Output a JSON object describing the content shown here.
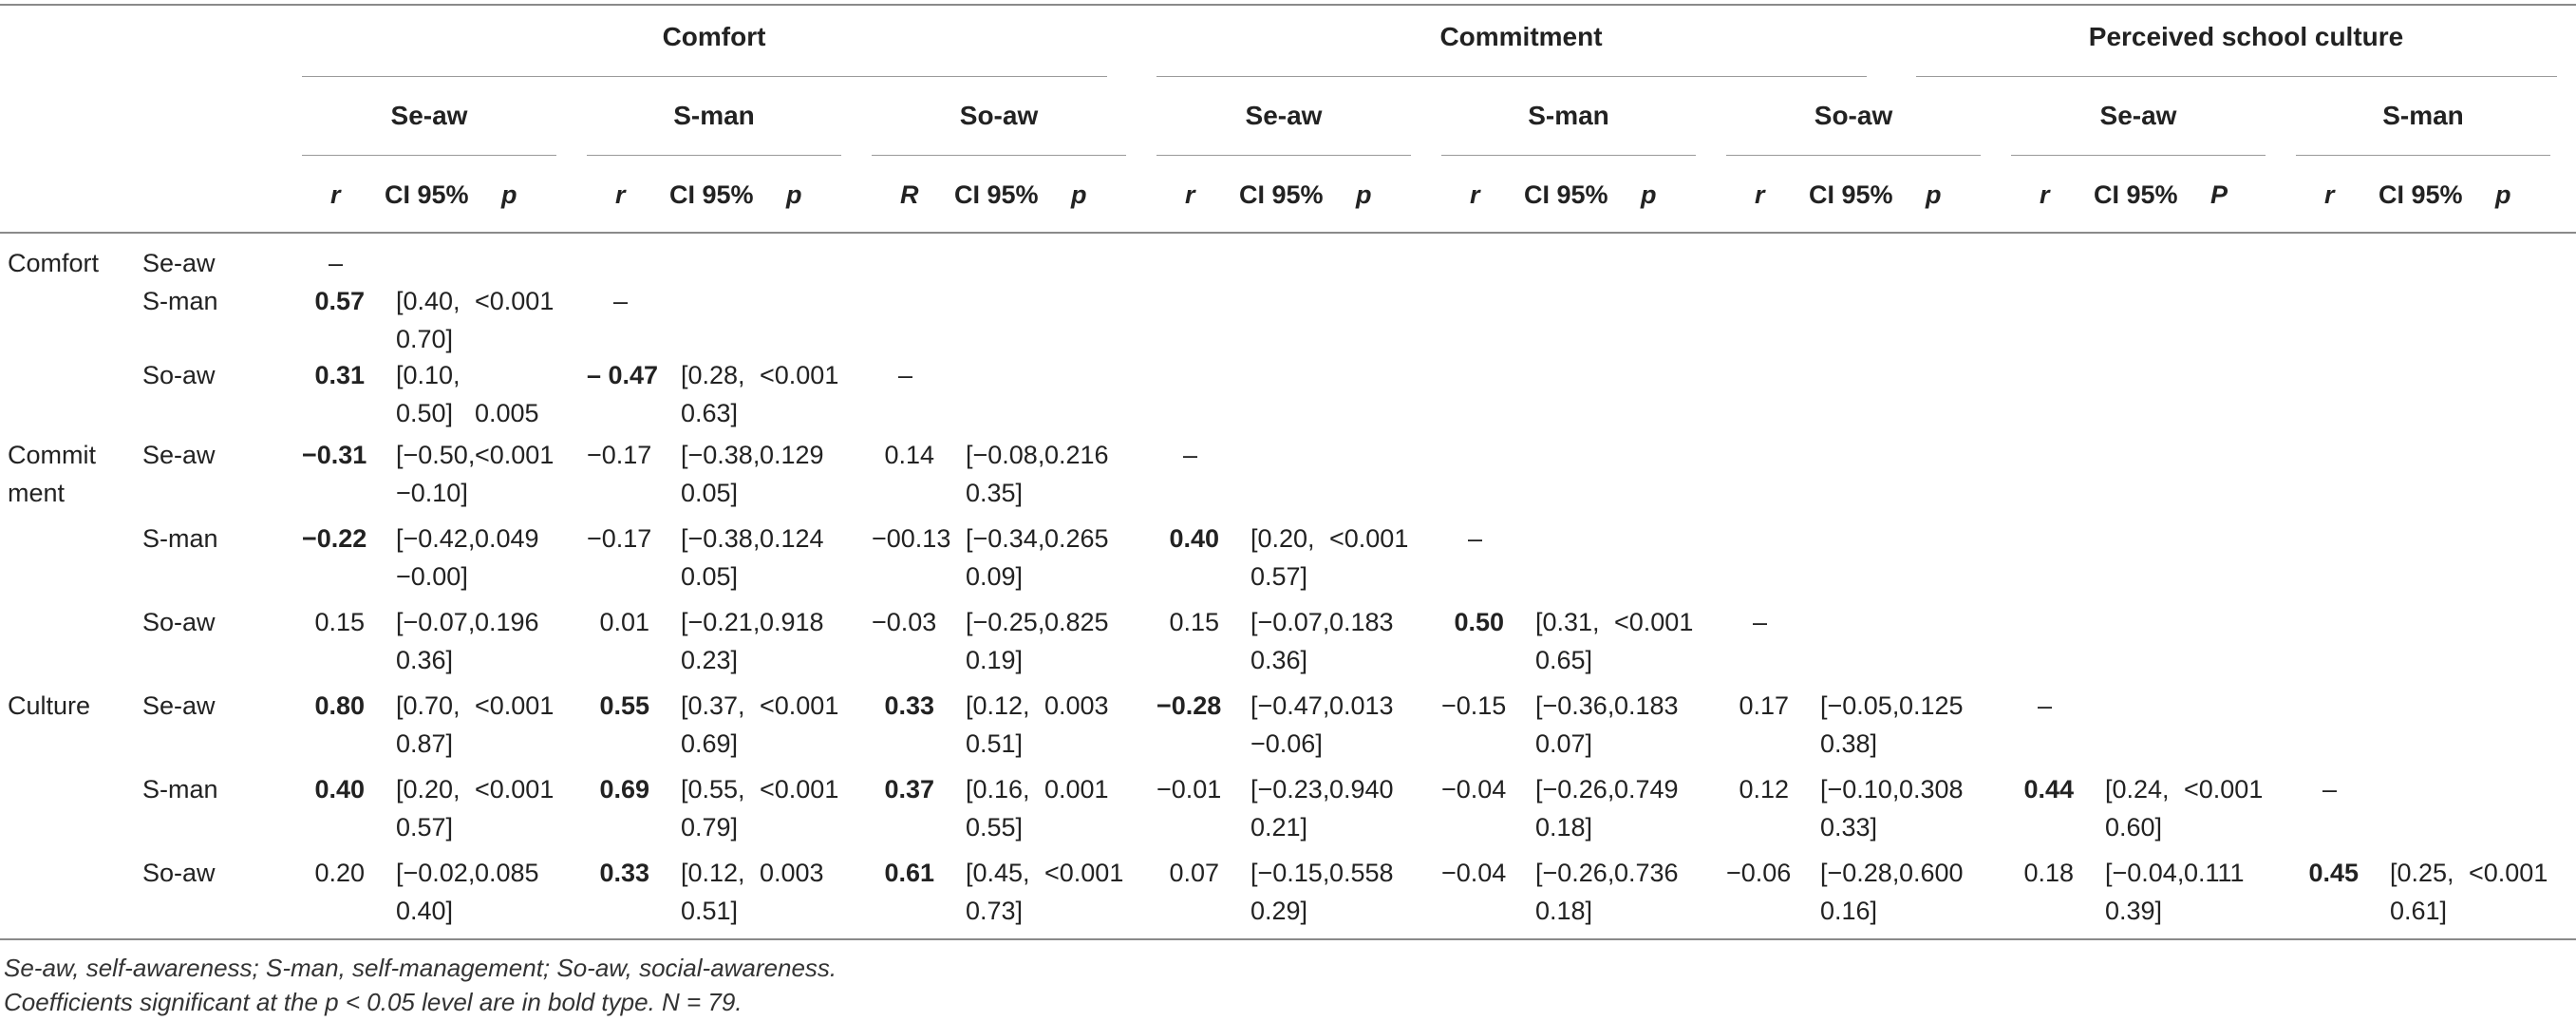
{
  "header": {
    "groups": [
      "Comfort",
      "Commitment",
      "Perceived school culture"
    ],
    "subgroups": [
      "Se-aw",
      "S-man",
      "So-aw",
      "Se-aw",
      "S-man",
      "So-aw",
      "Se-aw",
      "S-man"
    ],
    "stat_cols": [
      [
        "r",
        "CI 95%",
        "p"
      ],
      [
        "r",
        "CI 95%",
        "p"
      ],
      [
        "R",
        "CI 95%",
        "p"
      ],
      [
        "r",
        "CI 95%",
        "p"
      ],
      [
        "r",
        "CI 95%",
        "p"
      ],
      [
        "r",
        "CI 95%",
        "p"
      ],
      [
        "r",
        "CI 95%",
        "P"
      ],
      [
        "r",
        "CI 95%",
        "p"
      ]
    ]
  },
  "row_groups": [
    {
      "label": [
        "Comfort"
      ],
      "rows": [
        "Se-aw",
        "S-man",
        "So-aw"
      ]
    },
    {
      "label": [
        "Commit",
        "ment"
      ],
      "rows": [
        "Se-aw",
        "S-man",
        "So-aw"
      ]
    },
    {
      "label": [
        "Culture"
      ],
      "rows": [
        "Se-aw",
        "S-man",
        "So-aw"
      ]
    }
  ],
  "dash": "–",
  "rows": [
    {
      "cells": [
        [
          "–"
        ]
      ]
    },
    {
      "cells": [
        [
          "0.57",
          "[0.40,",
          "0.70]",
          "<0.001"
        ],
        [
          "–"
        ]
      ]
    },
    {
      "cells": [
        [
          "0.31",
          "[0.10,",
          "0.50]",
          "0.005"
        ],
        [
          "– 0.47",
          "[0.28,",
          "0.63]",
          "<0.001"
        ],
        [
          "–"
        ]
      ]
    },
    {
      "cells": [
        [
          "−0.31",
          "[−0.50,",
          "−0.10]",
          "<0.001"
        ],
        [
          "−0.17",
          "[−0.38,",
          "0.05]",
          "0.129"
        ],
        [
          "0.14",
          "[−0.08,",
          "0.35]",
          "0.216"
        ],
        [
          "–"
        ]
      ]
    },
    {
      "cells": [
        [
          "−0.22",
          "[−0.42,",
          "−0.00]",
          "0.049"
        ],
        [
          "−0.17",
          "[−0.38,",
          "0.05]",
          "0.124"
        ],
        [
          "−00.13",
          "[−0.34,",
          "0.09]",
          "0.265"
        ],
        [
          "0.40",
          "[0.20,",
          "0.57]",
          "<0.001"
        ],
        [
          "–"
        ]
      ]
    },
    {
      "cells": [
        [
          "0.15",
          "[−0.07,",
          "0.36]",
          "0.196"
        ],
        [
          "0.01",
          "[−0.21,",
          "0.23]",
          "0.918"
        ],
        [
          "−0.03",
          "[−0.25,",
          "0.19]",
          "0.825"
        ],
        [
          "0.15",
          "[−0.07,",
          "0.36]",
          "0.183"
        ],
        [
          "0.50",
          "[0.31,",
          "0.65]",
          "<0.001"
        ],
        [
          "–"
        ]
      ]
    },
    {
      "cells": [
        [
          "0.80",
          "[0.70,",
          "0.87]",
          "<0.001"
        ],
        [
          "0.55",
          "[0.37,",
          "0.69]",
          "<0.001"
        ],
        [
          "0.33",
          "[0.12,",
          "0.51]",
          "0.003"
        ],
        [
          "−0.28",
          "[−0.47,",
          "−0.06]",
          "0.013"
        ],
        [
          "−0.15",
          "[−0.36,",
          "0.07]",
          "0.183"
        ],
        [
          "0.17",
          "[−0.05,",
          "0.38]",
          "0.125"
        ],
        [
          "–"
        ]
      ]
    },
    {
      "cells": [
        [
          "0.40",
          "[0.20,",
          "0.57]",
          "<0.001"
        ],
        [
          "0.69",
          "[0.55,",
          "0.79]",
          "<0.001"
        ],
        [
          "0.37",
          "[0.16,",
          "0.55]",
          "0.001"
        ],
        [
          "−0.01",
          "[−0.23,",
          "0.21]",
          "0.940"
        ],
        [
          "−0.04",
          "[−0.26,",
          "0.18]",
          "0.749"
        ],
        [
          "0.12",
          "[−0.10,",
          "0.33]",
          "0.308"
        ],
        [
          "0.44",
          "[0.24,",
          "0.60]",
          "<0.001"
        ],
        [
          "–"
        ]
      ]
    },
    {
      "cells": [
        [
          "0.20",
          "[−0.02,",
          "0.40]",
          "0.085"
        ],
        [
          "0.33",
          "[0.12,",
          "0.51]",
          "0.003"
        ],
        [
          "0.61",
          "[0.45,",
          "0.73]",
          "<0.001"
        ],
        [
          "0.07",
          "[−0.15,",
          "0.29]",
          "0.558"
        ],
        [
          "−0.04",
          "[−0.26,",
          "0.18]",
          "0.736"
        ],
        [
          "−0.06",
          "[−0.28,",
          "0.16]",
          "0.600"
        ],
        [
          "0.18",
          "[−0.04,",
          "0.39]",
          "0.111"
        ],
        [
          "0.45",
          "[0.25,",
          "0.61]",
          "<0.001"
        ]
      ]
    }
  ],
  "footnotes": [
    "Se-aw, self-awareness; S-man, self-management; So-aw, social-awareness.",
    "Coefficients significant at the p < 0.05 level are in bold type. N = 79."
  ]
}
